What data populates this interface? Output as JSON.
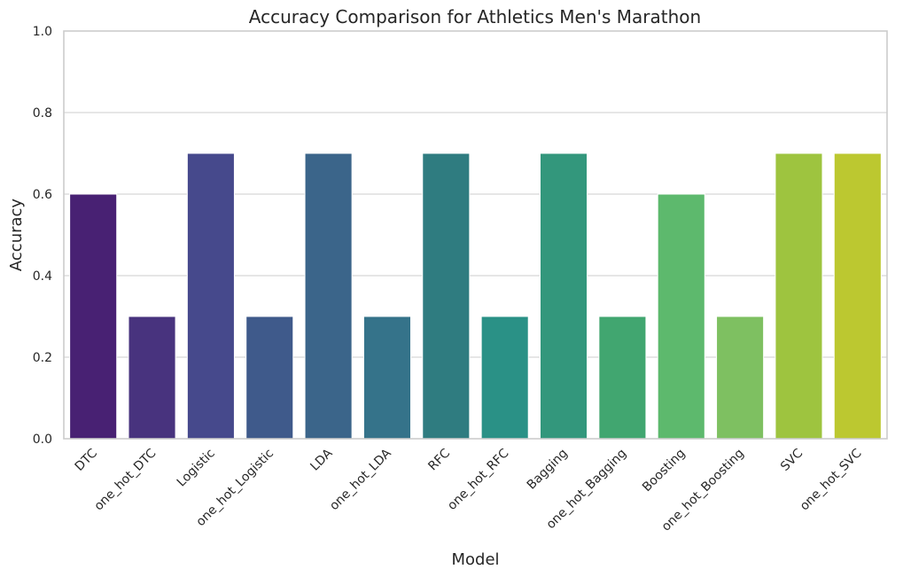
{
  "chart_data": {
    "type": "bar",
    "title": "Accuracy Comparison for Athletics Men's Marathon",
    "xlabel": "Model",
    "ylabel": "Accuracy",
    "ylim": [
      0,
      1
    ],
    "yticks": [
      "0.0",
      "0.2",
      "0.4",
      "0.6",
      "0.8",
      "1.0"
    ],
    "grid": "horizontal",
    "categories": [
      "DTC",
      "one_hot_DTC",
      "Logistic",
      "one_hot_Logistic",
      "LDA",
      "one_hot_LDA",
      "RFC",
      "one_hot_RFC",
      "Bagging",
      "one_hot_Bagging",
      "Boosting",
      "one_hot_Boosting",
      "SVC",
      "one_hot_SVC"
    ],
    "values": [
      0.6,
      0.3,
      0.7,
      0.3,
      0.7,
      0.3,
      0.7,
      0.3,
      0.7,
      0.3,
      0.6,
      0.3,
      0.7,
      0.7
    ],
    "colors": [
      "#482173",
      "#48337e",
      "#46498c",
      "#3f5a8b",
      "#3b658a",
      "#35738a",
      "#2f7c80",
      "#2a9186",
      "#33977c",
      "#41a670",
      "#5db96d",
      "#7ec061",
      "#9ec43f",
      "#bcc830"
    ]
  }
}
